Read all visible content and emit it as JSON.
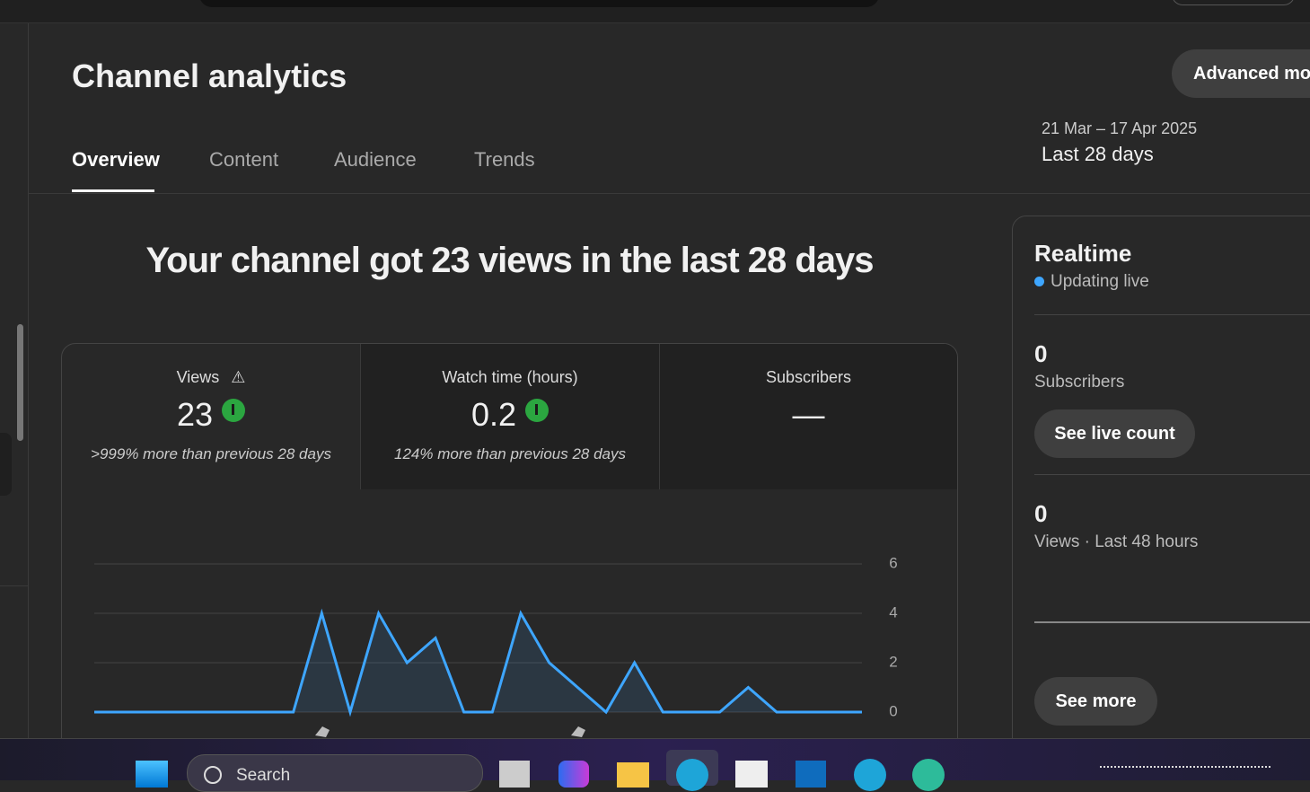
{
  "header": {
    "title": "Channel analytics",
    "button": "Advanced mode"
  },
  "tabs": [
    "Overview",
    "Content",
    "Audience",
    "Trends"
  ],
  "date_range": {
    "dates": "21 Mar – 17 Apr 2025",
    "label": "Last 28 days"
  },
  "headline": "Your channel got 23 views in the last 28 days",
  "metrics": [
    {
      "label": "Views",
      "value": "23",
      "change": ">999% more than previous 28 days"
    },
    {
      "label": "Watch time (hours)",
      "value": "0.2",
      "change": "124% more than previous 28 days"
    },
    {
      "label": "Subscribers",
      "value": "—"
    }
  ],
  "chart_data": {
    "type": "line",
    "categories": [
      null,
      null,
      null,
      null,
      null,
      null,
      null,
      null,
      null,
      null,
      null,
      null,
      null,
      null,
      null,
      null,
      null,
      null,
      null,
      null,
      null,
      null,
      null,
      null,
      null,
      null,
      null,
      null
    ],
    "values": [
      0,
      0,
      0,
      0,
      0,
      0,
      0,
      0,
      4,
      0,
      4,
      2,
      3,
      0,
      0,
      4,
      2,
      1,
      0,
      2,
      0,
      0,
      0,
      1,
      0,
      0,
      0,
      0
    ],
    "color": "#3ea6ff",
    "ylim": [
      0,
      6
    ],
    "yticks": [
      0,
      2,
      4,
      6
    ],
    "grid": true
  },
  "realtime": {
    "title": "Realtime",
    "status": "Updating live",
    "subscribers": {
      "value": 0,
      "label": "Subscribers"
    },
    "live_button": "See live count",
    "views": {
      "value": 0,
      "label": "Views · Last 48 hours"
    },
    "more_button": "See more"
  },
  "taskbar": {
    "search": "Search"
  }
}
